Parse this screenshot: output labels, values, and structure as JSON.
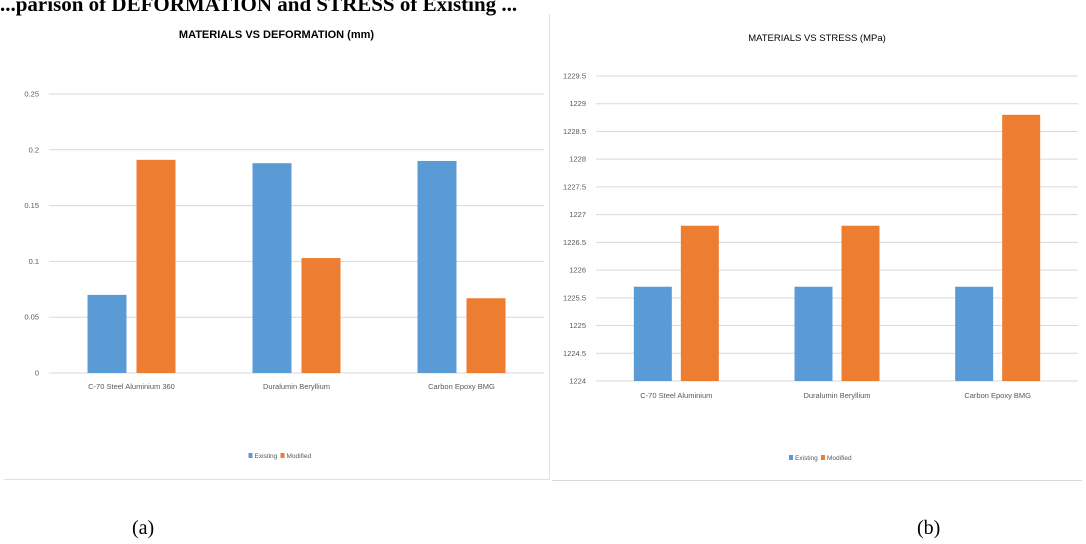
{
  "page_heading": "...parison of DEFORMATION and STRESS of Existing ...",
  "captions": {
    "a": "(a)",
    "b": "(b)"
  },
  "colors": {
    "existing": "#5b9bd5",
    "modified": "#ed7d31",
    "grid": "#d9d9d9",
    "text": "#595959"
  },
  "chart_data": [
    {
      "id": "a",
      "type": "bar",
      "title": "MATERIALS VS DEFORMATION (mm)",
      "categories": [
        "C-70 Steel    Aluminium 360",
        "Duralumin  Beryllium",
        "Carbon Epoxy   BMG"
      ],
      "series": [
        {
          "name": "Existing",
          "values": [
            0.07,
            0.188,
            0.19
          ]
        },
        {
          "name": "Modified",
          "values": [
            0.191,
            0.103,
            0.067
          ]
        }
      ],
      "ylim": [
        0,
        0.25
      ],
      "yticks": [
        0,
        0.05,
        0.1,
        0.15,
        0.2,
        0.25
      ],
      "ytick_labels": [
        "0",
        "0.05",
        "0.1",
        "0.15",
        "0.2",
        "0.25"
      ],
      "grid": true,
      "legend": "bottom"
    },
    {
      "id": "b",
      "type": "bar",
      "title": "MATERIALS VS STRESS (MPa)",
      "categories": [
        "C-70 Steel    Aluminium",
        "Duralumin   Beryllium",
        "Carbon Epoxy     BMG"
      ],
      "series": [
        {
          "name": "Existing",
          "values": [
            1225.7,
            1225.7,
            1225.7
          ]
        },
        {
          "name": "Modified",
          "values": [
            1226.8,
            1226.8,
            1228.8
          ]
        }
      ],
      "ylim": [
        1224,
        1229.5
      ],
      "yticks": [
        1224,
        1224.5,
        1225,
        1225.5,
        1226,
        1226.5,
        1227,
        1227.5,
        1228,
        1228.5,
        1229,
        1229.5
      ],
      "ytick_labels": [
        "1224",
        "1224.5",
        "1225",
        "1225.5",
        "1226",
        "1226.5",
        "1227",
        "1227.5",
        "1228",
        "1228.5",
        "1229",
        "1229.5"
      ],
      "grid": true,
      "legend": "bottom"
    }
  ]
}
